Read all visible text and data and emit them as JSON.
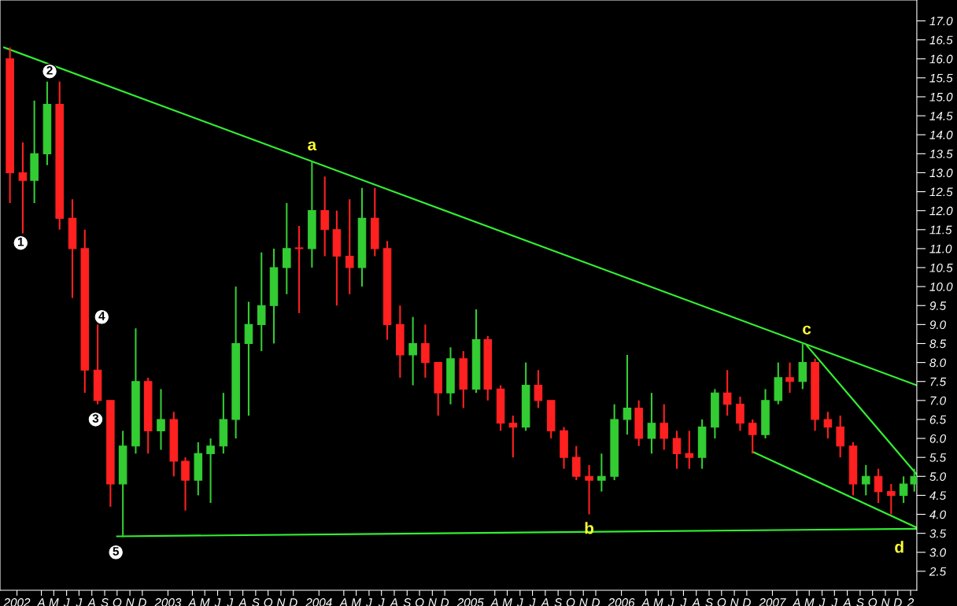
{
  "chart_data": {
    "type": "candlestick",
    "x": [
      "2002-01-15",
      "2002-02-15",
      "2002-03-15",
      "2002-04-15",
      "2002-05-15",
      "2002-06-15",
      "2002-07-15",
      "2002-08-15",
      "2002-09-15",
      "2002-10-15",
      "2002-11-15",
      "2002-12-15",
      "2003-01-15",
      "2003-02-15",
      "2003-03-15",
      "2003-04-15",
      "2003-05-15",
      "2003-06-15",
      "2003-07-15",
      "2003-08-15",
      "2003-09-15",
      "2003-10-15",
      "2003-11-15",
      "2003-12-15",
      "2004-01-15",
      "2004-02-15",
      "2004-03-15",
      "2004-04-15",
      "2004-05-15",
      "2004-06-15",
      "2004-07-15",
      "2004-08-15",
      "2004-09-15",
      "2004-10-15",
      "2004-11-15",
      "2004-12-15",
      "2005-01-15",
      "2005-02-15",
      "2005-03-15",
      "2005-04-15",
      "2005-05-15",
      "2005-06-15",
      "2005-07-15",
      "2005-08-15",
      "2005-09-15",
      "2005-10-15",
      "2005-11-15",
      "2005-12-15",
      "2006-01-15",
      "2006-02-15",
      "2006-03-15",
      "2006-04-15",
      "2006-05-15",
      "2006-06-15",
      "2006-07-15",
      "2006-08-15",
      "2006-09-15",
      "2006-10-15",
      "2006-11-15",
      "2006-12-15",
      "2007-01-15",
      "2007-02-15",
      "2007-03-15",
      "2007-04-15",
      "2007-05-15",
      "2007-06-15",
      "2007-07-15",
      "2007-08-15",
      "2007-09-15",
      "2007-10-15",
      "2007-11-15",
      "2007-12-15",
      "2008-01-10"
    ],
    "ohlc": [
      [
        16.0,
        16.3,
        12.2,
        13.0
      ],
      [
        13.0,
        13.8,
        11.4,
        12.8
      ],
      [
        12.8,
        14.9,
        12.2,
        13.5
      ],
      [
        13.5,
        15.4,
        13.2,
        14.8
      ],
      [
        14.8,
        15.4,
        11.5,
        11.8
      ],
      [
        11.8,
        12.3,
        9.7,
        11.0
      ],
      [
        11.0,
        11.5,
        7.2,
        7.8
      ],
      [
        7.8,
        9.0,
        6.9,
        7.0
      ],
      [
        7.0,
        7.0,
        4.2,
        4.8
      ],
      [
        4.8,
        6.2,
        3.4,
        5.8
      ],
      [
        5.8,
        8.9,
        5.6,
        7.5
      ],
      [
        7.5,
        7.6,
        5.6,
        6.2
      ],
      [
        6.2,
        7.3,
        5.7,
        6.5
      ],
      [
        6.5,
        6.7,
        5.0,
        5.4
      ],
      [
        5.4,
        5.5,
        4.1,
        4.9
      ],
      [
        4.9,
        5.9,
        4.5,
        5.6
      ],
      [
        5.6,
        6.0,
        4.3,
        5.8
      ],
      [
        5.8,
        7.2,
        5.6,
        6.5
      ],
      [
        6.5,
        10.0,
        6.0,
        8.5
      ],
      [
        8.5,
        9.6,
        6.6,
        9.0
      ],
      [
        9.0,
        10.9,
        8.3,
        9.5
      ],
      [
        9.5,
        11.0,
        8.5,
        10.5
      ],
      [
        10.5,
        12.2,
        9.8,
        11.0
      ],
      [
        11.0,
        11.6,
        9.3,
        11.0
      ],
      [
        11.0,
        13.3,
        10.5,
        12.0
      ],
      [
        12.0,
        12.9,
        10.8,
        11.5
      ],
      [
        11.5,
        12.0,
        9.5,
        10.8
      ],
      [
        10.8,
        12.3,
        9.8,
        10.5
      ],
      [
        10.5,
        12.6,
        10.0,
        11.8
      ],
      [
        11.8,
        12.6,
        10.8,
        11.0
      ],
      [
        11.0,
        11.2,
        8.6,
        9.0
      ],
      [
        9.0,
        9.5,
        7.6,
        8.2
      ],
      [
        8.2,
        9.2,
        7.4,
        8.5
      ],
      [
        8.5,
        9.0,
        7.6,
        8.0
      ],
      [
        8.0,
        8.0,
        6.6,
        7.2
      ],
      [
        7.2,
        8.4,
        6.9,
        8.1
      ],
      [
        8.1,
        8.3,
        6.8,
        7.3
      ],
      [
        7.3,
        9.4,
        7.2,
        8.6
      ],
      [
        8.6,
        8.7,
        7.0,
        7.3
      ],
      [
        7.3,
        7.4,
        6.2,
        6.4
      ],
      [
        6.4,
        6.6,
        5.5,
        6.3
      ],
      [
        6.3,
        8.0,
        6.2,
        7.4
      ],
      [
        7.4,
        7.8,
        6.8,
        7.0
      ],
      [
        7.0,
        7.0,
        6.0,
        6.2
      ],
      [
        6.2,
        6.3,
        5.2,
        5.5
      ],
      [
        5.5,
        5.8,
        4.9,
        5.0
      ],
      [
        5.0,
        5.3,
        4.0,
        4.9
      ],
      [
        4.9,
        5.6,
        4.6,
        5.0
      ],
      [
        5.0,
        6.9,
        4.9,
        6.5
      ],
      [
        6.5,
        8.2,
        6.1,
        6.8
      ],
      [
        6.8,
        7.0,
        5.8,
        6.0
      ],
      [
        6.0,
        7.2,
        5.6,
        6.4
      ],
      [
        6.4,
        6.9,
        5.7,
        6.0
      ],
      [
        6.0,
        6.2,
        5.2,
        5.6
      ],
      [
        5.6,
        6.2,
        5.2,
        5.5
      ],
      [
        5.5,
        6.5,
        5.2,
        6.3
      ],
      [
        6.3,
        7.3,
        6.0,
        7.2
      ],
      [
        7.2,
        7.8,
        6.6,
        6.9
      ],
      [
        6.9,
        7.1,
        6.2,
        6.4
      ],
      [
        6.4,
        6.5,
        5.6,
        6.1
      ],
      [
        6.1,
        7.3,
        6.0,
        7.0
      ],
      [
        7.0,
        8.0,
        6.9,
        7.6
      ],
      [
        7.6,
        8.0,
        7.2,
        7.5
      ],
      [
        7.5,
        8.5,
        7.3,
        8.0
      ],
      [
        8.0,
        8.1,
        6.2,
        6.5
      ],
      [
        6.5,
        6.7,
        6.0,
        6.3
      ],
      [
        6.3,
        6.6,
        5.5,
        5.8
      ],
      [
        5.8,
        5.9,
        4.5,
        4.8
      ],
      [
        4.8,
        5.3,
        4.5,
        5.0
      ],
      [
        5.0,
        5.2,
        4.3,
        4.6
      ],
      [
        4.6,
        4.8,
        4.0,
        4.5
      ],
      [
        4.5,
        5.0,
        4.3,
        4.8
      ],
      [
        4.8,
        5.2,
        4.6,
        5.0
      ]
    ],
    "colors": [
      "#ff2020",
      "#ff2020",
      "#33cc33",
      "#33cc33",
      "#ff2020",
      "#ff2020",
      "#ff2020",
      "#ff2020",
      "#ff2020",
      "#33cc33",
      "#33cc33",
      "#ff2020",
      "#33cc33",
      "#ff2020",
      "#ff2020",
      "#33cc33",
      "#33cc33",
      "#33cc33",
      "#33cc33",
      "#33cc33",
      "#33cc33",
      "#33cc33",
      "#33cc33",
      "#ff2020",
      "#33cc33",
      "#ff2020",
      "#ff2020",
      "#ff2020",
      "#33cc33",
      "#ff2020",
      "#ff2020",
      "#ff2020",
      "#33cc33",
      "#ff2020",
      "#ff2020",
      "#33cc33",
      "#ff2020",
      "#33cc33",
      "#ff2020",
      "#ff2020",
      "#ff2020",
      "#33cc33",
      "#ff2020",
      "#ff2020",
      "#ff2020",
      "#ff2020",
      "#ff2020",
      "#33cc33",
      "#33cc33",
      "#33cc33",
      "#ff2020",
      "#33cc33",
      "#ff2020",
      "#ff2020",
      "#ff2020",
      "#33cc33",
      "#33cc33",
      "#ff2020",
      "#ff2020",
      "#ff2020",
      "#33cc33",
      "#33cc33",
      "#ff2020",
      "#33cc33",
      "#ff2020",
      "#ff2020",
      "#ff2020",
      "#ff2020",
      "#33cc33",
      "#ff2020",
      "#ff2020",
      "#33cc33",
      "#33cc33"
    ],
    "series": [
      {
        "type": "line",
        "color": "#33ee33",
        "x": [
          "2002-01-01",
          "2008-01-16"
        ],
        "values": [
          16.3,
          7.4
        ]
      },
      {
        "type": "line",
        "color": "#33ee33",
        "x": [
          "2002-10-01",
          "2008-01-16"
        ],
        "values": [
          3.42,
          3.62
        ]
      },
      {
        "type": "line",
        "color": "#33ee33",
        "x": [
          "2007-04-25",
          "2008-01-16"
        ],
        "values": [
          8.45,
          5.05
        ]
      },
      {
        "type": "line",
        "color": "#33ee33",
        "x": [
          "2006-12-15",
          "2008-01-16"
        ],
        "values": [
          5.65,
          3.65
        ]
      }
    ],
    "annotations": [
      {
        "text": "1",
        "x": "2002-02-10",
        "y": 11.15
      },
      {
        "text": "2",
        "x": "2002-04-21",
        "y": 15.67
      },
      {
        "text": "3",
        "x": "2002-08-10",
        "y": 6.5
      },
      {
        "text": "4",
        "x": "2002-08-25",
        "y": 9.2
      },
      {
        "text": "5",
        "x": "2002-09-28",
        "y": 3.0
      },
      {
        "text": "a",
        "x": "2004-01-15",
        "y": 13.3
      },
      {
        "text": "b",
        "x": "2005-11-15",
        "y": 4.0
      },
      {
        "text": "c",
        "x": "2007-04-25",
        "y": 8.45
      },
      {
        "text": "d",
        "x": "2008-01-16",
        "y": 3.62
      }
    ],
    "xlim": [
      "2001-12-22",
      "2008-01-16"
    ],
    "xticks": [
      {
        "value": "2002-02-01",
        "label": "2002"
      },
      {
        "value": "2002-04-01",
        "label": "A"
      },
      {
        "value": "2002-05-01",
        "label": "M"
      },
      {
        "value": "2002-06-01",
        "label": "J"
      },
      {
        "value": "2002-07-01",
        "label": "J"
      },
      {
        "value": "2002-08-01",
        "label": "A"
      },
      {
        "value": "2002-09-01",
        "label": "S"
      },
      {
        "value": "2002-10-01",
        "label": "O"
      },
      {
        "value": "2002-11-01",
        "label": "N"
      },
      {
        "value": "2002-12-01",
        "label": "D"
      },
      {
        "value": "2003-02-01",
        "label": "2003"
      },
      {
        "value": "2003-04-01",
        "label": "A"
      },
      {
        "value": "2003-05-01",
        "label": "M"
      },
      {
        "value": "2003-06-01",
        "label": "J"
      },
      {
        "value": "2003-07-01",
        "label": "J"
      },
      {
        "value": "2003-08-01",
        "label": "A"
      },
      {
        "value": "2003-09-01",
        "label": "S"
      },
      {
        "value": "2003-10-01",
        "label": "O"
      },
      {
        "value": "2003-11-01",
        "label": "N"
      },
      {
        "value": "2003-12-01",
        "label": "D"
      },
      {
        "value": "2004-02-01",
        "label": "2004"
      },
      {
        "value": "2004-04-01",
        "label": "A"
      },
      {
        "value": "2004-05-01",
        "label": "M"
      },
      {
        "value": "2004-06-01",
        "label": "J"
      },
      {
        "value": "2004-07-01",
        "label": "J"
      },
      {
        "value": "2004-08-01",
        "label": "A"
      },
      {
        "value": "2004-09-01",
        "label": "S"
      },
      {
        "value": "2004-10-01",
        "label": "O"
      },
      {
        "value": "2004-11-01",
        "label": "N"
      },
      {
        "value": "2004-12-01",
        "label": "D"
      },
      {
        "value": "2005-02-01",
        "label": "2005"
      },
      {
        "value": "2005-04-01",
        "label": "A"
      },
      {
        "value": "2005-05-01",
        "label": "M"
      },
      {
        "value": "2005-06-01",
        "label": "J"
      },
      {
        "value": "2005-07-01",
        "label": "J"
      },
      {
        "value": "2005-08-01",
        "label": "A"
      },
      {
        "value": "2005-09-01",
        "label": "S"
      },
      {
        "value": "2005-10-01",
        "label": "O"
      },
      {
        "value": "2005-11-01",
        "label": "N"
      },
      {
        "value": "2005-12-01",
        "label": "D"
      },
      {
        "value": "2006-02-01",
        "label": "2006"
      },
      {
        "value": "2006-04-01",
        "label": "A"
      },
      {
        "value": "2006-05-01",
        "label": "M"
      },
      {
        "value": "2006-06-01",
        "label": "J"
      },
      {
        "value": "2006-07-01",
        "label": "J"
      },
      {
        "value": "2006-08-01",
        "label": "A"
      },
      {
        "value": "2006-09-01",
        "label": "S"
      },
      {
        "value": "2006-10-01",
        "label": "O"
      },
      {
        "value": "2006-11-01",
        "label": "N"
      },
      {
        "value": "2006-12-01",
        "label": "D"
      },
      {
        "value": "2007-02-01",
        "label": "2007"
      },
      {
        "value": "2007-04-01",
        "label": "A"
      },
      {
        "value": "2007-05-01",
        "label": "M"
      },
      {
        "value": "2007-06-01",
        "label": "J"
      },
      {
        "value": "2007-07-01",
        "label": "J"
      },
      {
        "value": "2007-08-01",
        "label": "A"
      },
      {
        "value": "2007-09-01",
        "label": "S"
      },
      {
        "value": "2007-10-01",
        "label": "O"
      },
      {
        "value": "2007-11-01",
        "label": "N"
      },
      {
        "value": "2007-12-01",
        "label": "D"
      },
      {
        "value": "2008-01-01",
        "label": "2"
      }
    ],
    "ylim": [
      2.0,
      17.55
    ],
    "yticks": [
      {
        "value": 2.5,
        "label": "2.5"
      },
      {
        "value": 3,
        "label": "3.0"
      },
      {
        "value": 3.5,
        "label": "3.5"
      },
      {
        "value": 4,
        "label": "4.0"
      },
      {
        "value": 4.5,
        "label": "4.5"
      },
      {
        "value": 5,
        "label": "5.0"
      },
      {
        "value": 5.5,
        "label": "5.5"
      },
      {
        "value": 6,
        "label": "6.0"
      },
      {
        "value": 6.5,
        "label": "6.5"
      },
      {
        "value": 7,
        "label": "7.0"
      },
      {
        "value": 7.5,
        "label": "7.5"
      },
      {
        "value": 8,
        "label": "8.0"
      },
      {
        "value": 8.5,
        "label": "8.5"
      },
      {
        "value": 9,
        "label": "9.0"
      },
      {
        "value": 9.5,
        "label": "9.5"
      },
      {
        "value": 10,
        "label": "10.0"
      },
      {
        "value": 10.5,
        "label": "10.5"
      },
      {
        "value": 11,
        "label": "11.0"
      },
      {
        "value": 11.5,
        "label": "11.5"
      },
      {
        "value": 12,
        "label": "12.0"
      },
      {
        "value": 12.5,
        "label": "12.5"
      },
      {
        "value": 13,
        "label": "13.0"
      },
      {
        "value": 13.5,
        "label": "13.5"
      },
      {
        "value": 14,
        "label": "14.0"
      },
      {
        "value": 14.5,
        "label": "14.5"
      },
      {
        "value": 15,
        "label": "15.0"
      },
      {
        "value": 15.5,
        "label": "15.5"
      },
      {
        "value": 16,
        "label": "16.0"
      },
      {
        "value": 16.5,
        "label": "16.5"
      },
      {
        "value": 17,
        "label": "17.0"
      }
    ],
    "grid": false,
    "legend": false
  }
}
